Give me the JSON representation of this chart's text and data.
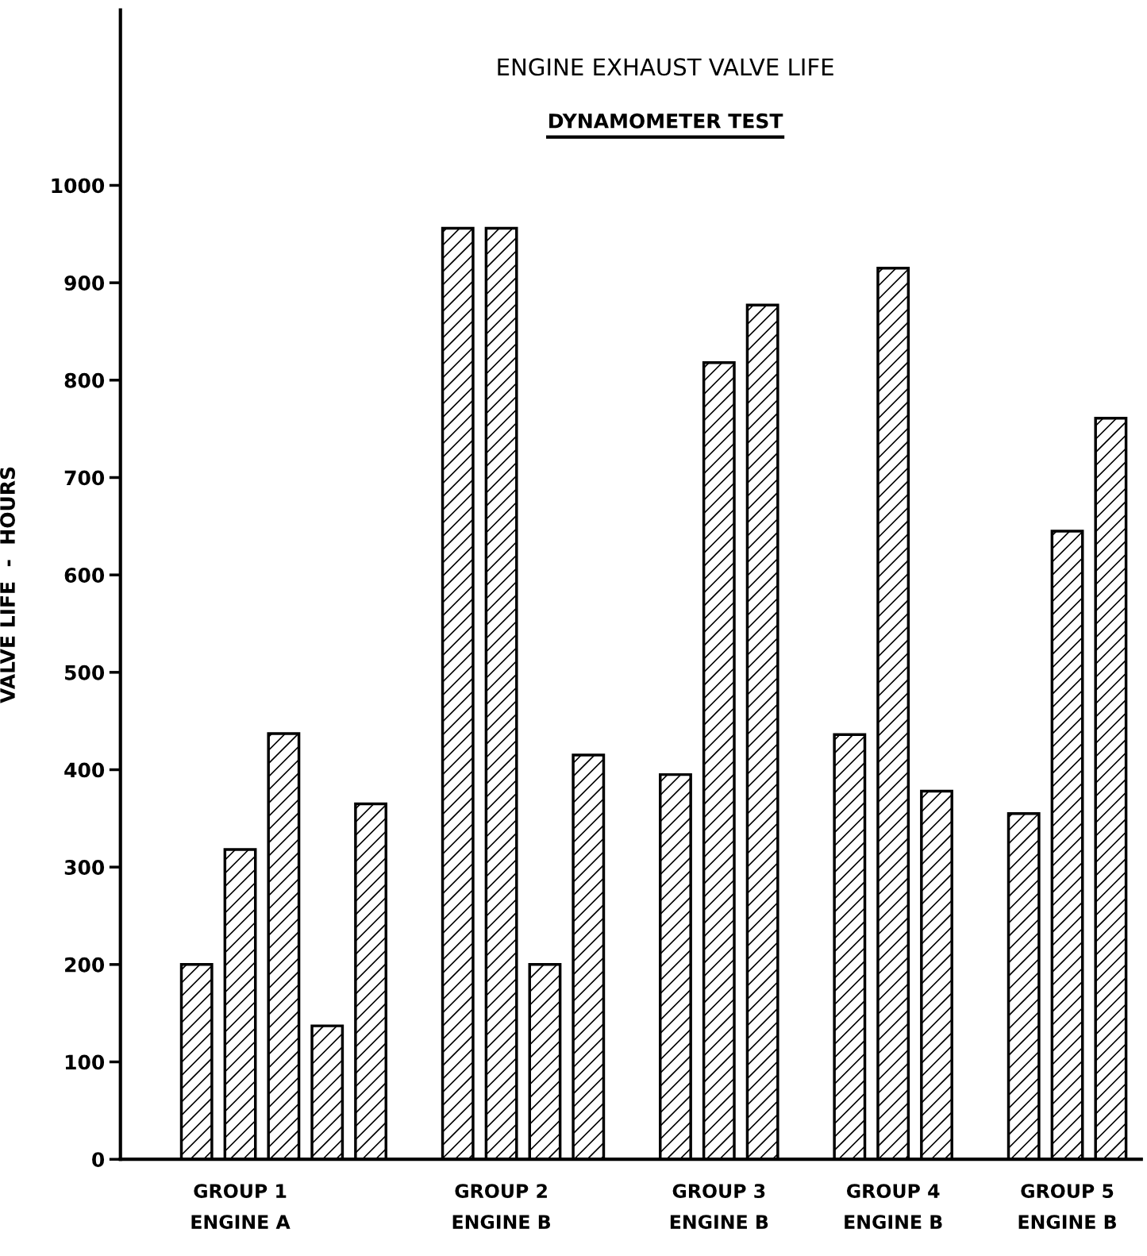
{
  "chart_data": {
    "type": "bar",
    "title": "ENGINE EXHAUST VALVE LIFE",
    "subtitle": "DYNAMOMETER TEST",
    "ylabel": "VALVE LIFE  -  HOURS",
    "categories": [
      null,
      "GROUP 1\nENGINE A",
      null,
      null,
      null,
      null,
      null,
      "GROUP 2\nENGINE B",
      null,
      null,
      null,
      null,
      "GROUP 3\nENGINE B",
      null,
      null,
      null,
      "GROUP 4\nENGINE B",
      null,
      null,
      null,
      "GROUP 5\nENGINE B",
      null
    ],
    "values": [
      200,
      318,
      437,
      137,
      365,
      null,
      956,
      956,
      200,
      415,
      null,
      395,
      818,
      877,
      null,
      436,
      915,
      378,
      null,
      355,
      645,
      761
    ],
    "color": "#000000",
    "ylim": [
      0,
      1180
    ],
    "yticks": [
      0,
      100,
      200,
      300,
      400,
      500,
      600,
      700,
      800,
      900,
      1000
    ],
    "grid": false,
    "legend": false
  }
}
